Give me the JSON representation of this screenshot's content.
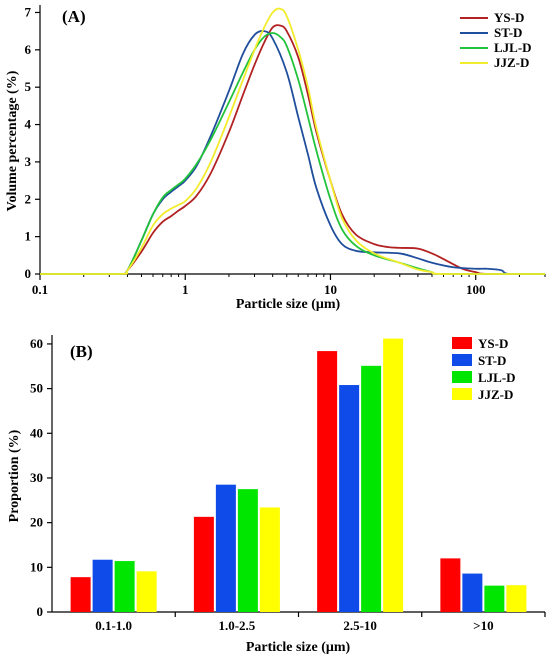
{
  "chart_data": [
    {
      "panel_label": "(A)",
      "type": "line",
      "xlabel": "Particle size (μm)",
      "ylabel": "Volume percentage (%)",
      "xscale": "log",
      "xlim": [
        0.1,
        300
      ],
      "ylim": [
        0,
        7.2
      ],
      "x_ticks": [
        0.1,
        1,
        10,
        100
      ],
      "x_tick_labels": [
        "0.1",
        "1",
        "10",
        "100"
      ],
      "y_ticks": [
        0,
        1,
        2,
        3,
        4,
        5,
        6,
        7
      ],
      "y_tick_labels": [
        "0",
        "1",
        "2",
        "3",
        "4",
        "5",
        "6",
        "7"
      ],
      "grid": false,
      "legend_position": "top-right",
      "series": [
        {
          "name": "YS-D",
          "color": "#b22222",
          "points": [
            [
              0.1,
              0
            ],
            [
              0.35,
              0
            ],
            [
              0.4,
              0.1
            ],
            [
              0.5,
              0.6
            ],
            [
              0.6,
              1.1
            ],
            [
              0.7,
              1.4
            ],
            [
              0.8,
              1.55
            ],
            [
              0.9,
              1.7
            ],
            [
              1.0,
              1.82
            ],
            [
              1.2,
              2.1
            ],
            [
              1.5,
              2.7
            ],
            [
              2.0,
              3.8
            ],
            [
              2.5,
              4.8
            ],
            [
              3.0,
              5.6
            ],
            [
              3.5,
              6.2
            ],
            [
              4.0,
              6.6
            ],
            [
              4.5,
              6.65
            ],
            [
              5.0,
              6.5
            ],
            [
              6.0,
              5.8
            ],
            [
              7.0,
              4.8
            ],
            [
              8.0,
              3.8
            ],
            [
              10,
              2.5
            ],
            [
              12,
              1.6
            ],
            [
              15,
              1.05
            ],
            [
              20,
              0.8
            ],
            [
              25,
              0.72
            ],
            [
              30,
              0.7
            ],
            [
              40,
              0.68
            ],
            [
              50,
              0.55
            ],
            [
              60,
              0.4
            ],
            [
              80,
              0.15
            ],
            [
              100,
              0.05
            ],
            [
              120,
              0.0
            ],
            [
              300,
              0
            ]
          ]
        },
        {
          "name": "ST-D",
          "color": "#1f4e9c",
          "points": [
            [
              0.1,
              0
            ],
            [
              0.35,
              0
            ],
            [
              0.4,
              0.1
            ],
            [
              0.5,
              0.9
            ],
            [
              0.6,
              1.6
            ],
            [
              0.7,
              2.0
            ],
            [
              0.8,
              2.2
            ],
            [
              0.9,
              2.35
            ],
            [
              1.0,
              2.5
            ],
            [
              1.2,
              2.9
            ],
            [
              1.5,
              3.7
            ],
            [
              2.0,
              4.9
            ],
            [
              2.5,
              5.9
            ],
            [
              3.0,
              6.4
            ],
            [
              3.5,
              6.5
            ],
            [
              4.0,
              6.3
            ],
            [
              5.0,
              5.4
            ],
            [
              6.0,
              4.2
            ],
            [
              7.0,
              3.2
            ],
            [
              8.0,
              2.3
            ],
            [
              10,
              1.3
            ],
            [
              12,
              0.8
            ],
            [
              15,
              0.62
            ],
            [
              20,
              0.58
            ],
            [
              30,
              0.55
            ],
            [
              40,
              0.42
            ],
            [
              50,
              0.3
            ],
            [
              70,
              0.18
            ],
            [
              100,
              0.14
            ],
            [
              120,
              0.14
            ],
            [
              150,
              0.1
            ],
            [
              170,
              0.0
            ],
            [
              300,
              0
            ]
          ]
        },
        {
          "name": "LJL-D",
          "color": "#22c33a",
          "points": [
            [
              0.1,
              0
            ],
            [
              0.35,
              0
            ],
            [
              0.4,
              0.1
            ],
            [
              0.5,
              0.9
            ],
            [
              0.6,
              1.6
            ],
            [
              0.7,
              2.05
            ],
            [
              0.8,
              2.25
            ],
            [
              0.9,
              2.4
            ],
            [
              1.0,
              2.55
            ],
            [
              1.2,
              2.95
            ],
            [
              1.5,
              3.6
            ],
            [
              2.0,
              4.6
            ],
            [
              2.5,
              5.4
            ],
            [
              3.0,
              6.0
            ],
            [
              3.5,
              6.35
            ],
            [
              4.0,
              6.45
            ],
            [
              4.5,
              6.35
            ],
            [
              5.0,
              6.1
            ],
            [
              6.0,
              5.2
            ],
            [
              7.0,
              4.2
            ],
            [
              8.0,
              3.3
            ],
            [
              10,
              2.0
            ],
            [
              12,
              1.2
            ],
            [
              15,
              0.75
            ],
            [
              20,
              0.5
            ],
            [
              30,
              0.3
            ],
            [
              40,
              0.15
            ],
            [
              50,
              0.05
            ],
            [
              60,
              0.0
            ],
            [
              300,
              0
            ]
          ]
        },
        {
          "name": "JJZ-D",
          "color": "#f2ec2c",
          "points": [
            [
              0.1,
              0
            ],
            [
              0.35,
              0
            ],
            [
              0.4,
              0.1
            ],
            [
              0.5,
              0.7
            ],
            [
              0.6,
              1.3
            ],
            [
              0.7,
              1.6
            ],
            [
              0.8,
              1.75
            ],
            [
              0.9,
              1.85
            ],
            [
              1.0,
              1.95
            ],
            [
              1.2,
              2.3
            ],
            [
              1.5,
              3.0
            ],
            [
              2.0,
              4.2
            ],
            [
              2.5,
              5.2
            ],
            [
              3.0,
              6.0
            ],
            [
              3.5,
              6.6
            ],
            [
              4.0,
              7.0
            ],
            [
              4.5,
              7.1
            ],
            [
              5.0,
              6.9
            ],
            [
              6.0,
              6.0
            ],
            [
              7.0,
              5.0
            ],
            [
              8.0,
              3.9
            ],
            [
              10,
              2.5
            ],
            [
              12,
              1.5
            ],
            [
              15,
              0.9
            ],
            [
              20,
              0.55
            ],
            [
              30,
              0.3
            ],
            [
              40,
              0.12
            ],
            [
              50,
              0.05
            ],
            [
              60,
              0.0
            ],
            [
              300,
              0
            ]
          ]
        }
      ]
    },
    {
      "panel_label": "(B)",
      "type": "bar",
      "xlabel": "Particle size (μm)",
      "ylabel": "Proportion (%)",
      "categories": [
        "0.1-1.0",
        "1.0-2.5",
        "2.5-10",
        ">10"
      ],
      "ylim": [
        0,
        62
      ],
      "y_ticks": [
        0,
        10,
        20,
        30,
        40,
        50,
        60
      ],
      "y_tick_labels": [
        "0",
        "10",
        "20",
        "30",
        "40",
        "50",
        "60"
      ],
      "grid": false,
      "legend_position": "top-right",
      "series": [
        {
          "name": "YS-D",
          "color": "#ff0000",
          "values": [
            7.8,
            21.3,
            58.4,
            12.0
          ]
        },
        {
          "name": "ST-D",
          "color": "#0f4be8",
          "values": [
            11.7,
            28.5,
            50.8,
            8.6
          ]
        },
        {
          "name": "LJL-D",
          "color": "#00e600",
          "values": [
            11.4,
            27.5,
            55.1,
            5.9
          ]
        },
        {
          "name": "JJZ-D",
          "color": "#ffff00",
          "values": [
            9.1,
            23.4,
            61.2,
            6.0
          ]
        }
      ]
    }
  ]
}
